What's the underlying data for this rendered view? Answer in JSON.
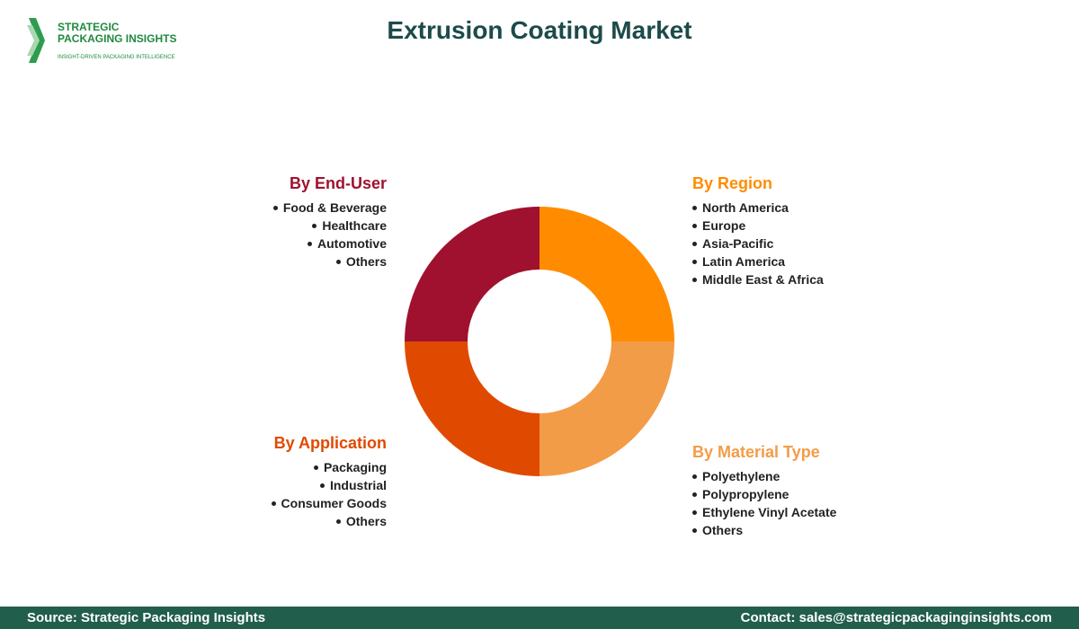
{
  "logo": {
    "name_line1": "STRATEGIC",
    "name_line2": "PACKAGING INSIGHTS",
    "tagline": "INSIGHT-DRIVEN PACKAGING INTELLIGENCE"
  },
  "header": {
    "title": "Extrusion Coating Market"
  },
  "segments": [
    {
      "title": "By End-User",
      "color": "#a0112f",
      "items": [
        "Food & Beverage",
        "Healthcare",
        "Automotive",
        "Others"
      ]
    },
    {
      "title": "By Region",
      "color": "#ff8c00",
      "items": [
        "North America",
        "Europe",
        "Asia-Pacific",
        "Latin America",
        "Middle East & Africa"
      ]
    },
    {
      "title": "By Application",
      "color": "#e04a00",
      "items": [
        "Packaging",
        "Industrial",
        "Consumer Goods",
        "Others"
      ]
    },
    {
      "title": "By Material Type",
      "color": "#f39c47",
      "items": [
        "Polyethylene",
        "Polypropylene",
        "Ethylene Vinyl Acetate",
        "Others"
      ]
    }
  ],
  "footer": {
    "source": "Source: Strategic Packaging Insights",
    "contact": "Contact: sales@strategicpackaginginsights.com"
  }
}
